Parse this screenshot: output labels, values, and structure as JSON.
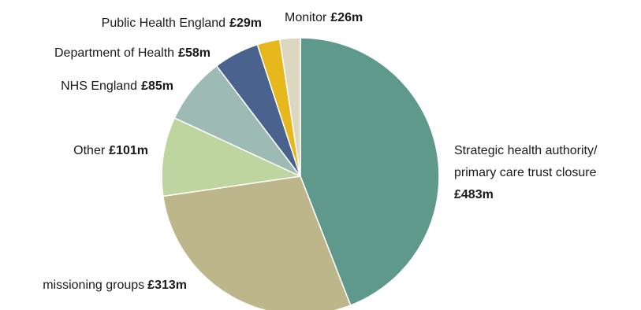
{
  "chart_data": {
    "type": "pie",
    "unit": "£m",
    "start_angle_deg": 0,
    "direction": "clockwise",
    "slices": [
      {
        "label": "Strategic health authority/ primary care trust closure",
        "label_lines": [
          "Strategic health authority/",
          "primary care trust closure"
        ],
        "value": 483,
        "value_text": "£483m",
        "color": "#5e998b"
      },
      {
        "label": "Clinical commissioning groups",
        "label_visible": "missioning groups",
        "value": 313,
        "value_text": "£313m",
        "color": "#bcb68a"
      },
      {
        "label": "Other",
        "value": 101,
        "value_text": "£101m",
        "color": "#bed5a0"
      },
      {
        "label": "NHS England",
        "value": 85,
        "value_text": "£85m",
        "color": "#9dbbb4"
      },
      {
        "label": "Department of Health",
        "value": 58,
        "value_text": "£58m",
        "color": "#4a638e"
      },
      {
        "label": "Public Health England",
        "value": 29,
        "value_text": "£29m",
        "color": "#e6b81e"
      },
      {
        "label": "Monitor",
        "value": 26,
        "value_text": "£26m",
        "color": "#ddd6c0"
      }
    ]
  }
}
